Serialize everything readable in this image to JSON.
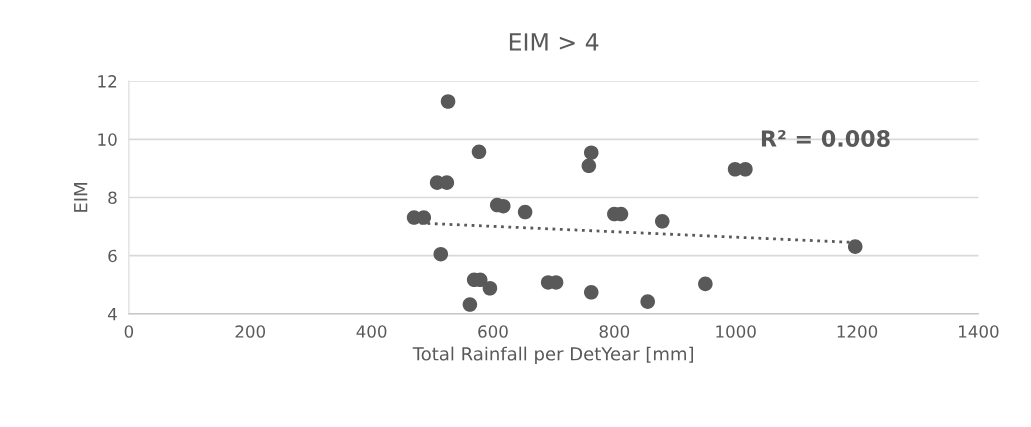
{
  "chart_data": {
    "type": "scatter",
    "title": "EIM > 4",
    "xlabel": "Total Rainfall per DetYear [mm]",
    "ylabel": "EIM",
    "series": [
      {
        "color": "#595959",
        "marker": "circle",
        "x": [
          526,
          577,
          508,
          524,
          470,
          486,
          607,
          617,
          653,
          762,
          758,
          800,
          811,
          879,
          514,
          569,
          579,
          595,
          562,
          691,
          704,
          762,
          855,
          950,
          999,
          1016,
          1197
        ],
        "values": [
          11.3,
          9.57,
          8.51,
          8.51,
          7.31,
          7.31,
          7.74,
          7.7,
          7.5,
          9.54,
          9.09,
          7.43,
          7.43,
          7.18,
          6.05,
          5.17,
          5.17,
          4.88,
          4.32,
          5.08,
          5.08,
          4.74,
          4.42,
          5.03,
          8.97,
          8.97,
          6.31
        ]
      },
      {
        "type": "line",
        "color": "#595959",
        "marker": "none",
        "line_style": "dotted",
        "x": [
          480,
          1200
        ],
        "values": [
          7.12,
          6.45
        ]
      }
    ],
    "annotations": [
      "R² = 0.008"
    ],
    "xlim": [
      0,
      1400
    ],
    "xticks": [
      0,
      200,
      400,
      600,
      800,
      1000,
      1200,
      1400
    ],
    "ylim": [
      4,
      12
    ],
    "yticks": [
      4,
      6,
      8,
      10,
      12
    ],
    "grid": "y",
    "legend": false
  }
}
